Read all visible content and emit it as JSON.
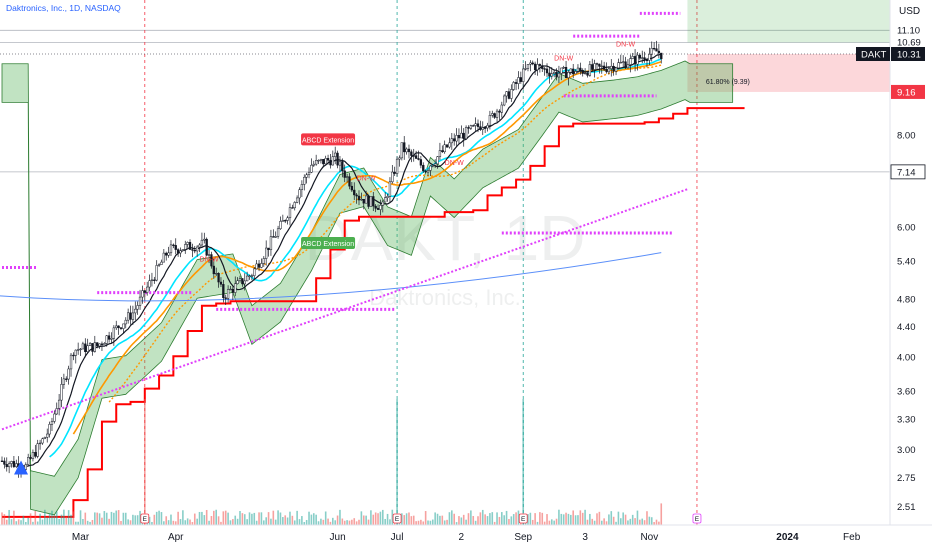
{
  "chart_data": {
    "type": "candlestick",
    "title": "Daktronics, Inc., 1D, NASDAQ",
    "symbol": "DAKT",
    "watermark_symbol": "DAKT, 1D",
    "watermark_name": "Daktronics, Inc.",
    "currency": "USD",
    "last_price": 10.31,
    "y_axis": {
      "scale": "log",
      "ticks": [
        2.51,
        2.75,
        3.0,
        3.3,
        3.6,
        4.0,
        4.4,
        4.8,
        5.4,
        6.0,
        7.14,
        8.0,
        9.16,
        10.69,
        11.1
      ],
      "labels": [
        "2.51",
        "2.75",
        "3.00",
        "3.30",
        "3.60",
        "4.00",
        "4.40",
        "4.80",
        "5.40",
        "6.00",
        "7.14",
        "8.00",
        "9.16",
        "10.69",
        "11.10"
      ],
      "highlighted": {
        "9.16": "#f23645",
        "10.31": "#131722",
        "7.14": "#ffffff"
      }
    },
    "x_axis": {
      "labels": [
        "Mar",
        "Apr",
        "Jun",
        "Jul",
        "2",
        "Sep",
        "3",
        "Nov",
        "2024",
        "Feb"
      ],
      "label_bar_index": [
        33,
        73,
        141,
        166,
        193,
        219,
        245,
        272,
        330,
        357
      ]
    },
    "annotations": [
      {
        "text": "ABCD Extension",
        "color": "#f23645",
        "bar_index": 137,
        "price": 7.9
      },
      {
        "text": "ABCD Extension",
        "color": "#4caf50",
        "bar_index": 137,
        "price": 5.72
      },
      {
        "text": "DN-W",
        "color": "#f23645",
        "bar_index": 87,
        "price": 5.4
      },
      {
        "text": "DN-W",
        "color": "#f23645",
        "bar_index": 153,
        "price": 6.95
      },
      {
        "text": "DN-W",
        "color": "#f23645",
        "bar_index": 190,
        "price": 7.3
      },
      {
        "text": "DN-W",
        "color": "#f23645",
        "bar_index": 236,
        "price": 10.1
      },
      {
        "text": "DN-W",
        "color": "#f23645",
        "bar_index": 262,
        "price": 10.55
      },
      {
        "text": "61.80% (9.39)",
        "color": "#131722",
        "bar_index": 305,
        "price": 9.39
      }
    ],
    "earnings_markers": [
      "E",
      "E",
      "E",
      "E"
    ],
    "series": [
      {
        "name": "OHLC daily",
        "kind": "candles"
      },
      {
        "name": "Volume",
        "kind": "histogram"
      },
      {
        "name": "Cloud",
        "kind": "band"
      },
      {
        "name": "Support stop",
        "kind": "step"
      },
      {
        "name": "Moving averages",
        "kind": "lines"
      }
    ]
  }
}
